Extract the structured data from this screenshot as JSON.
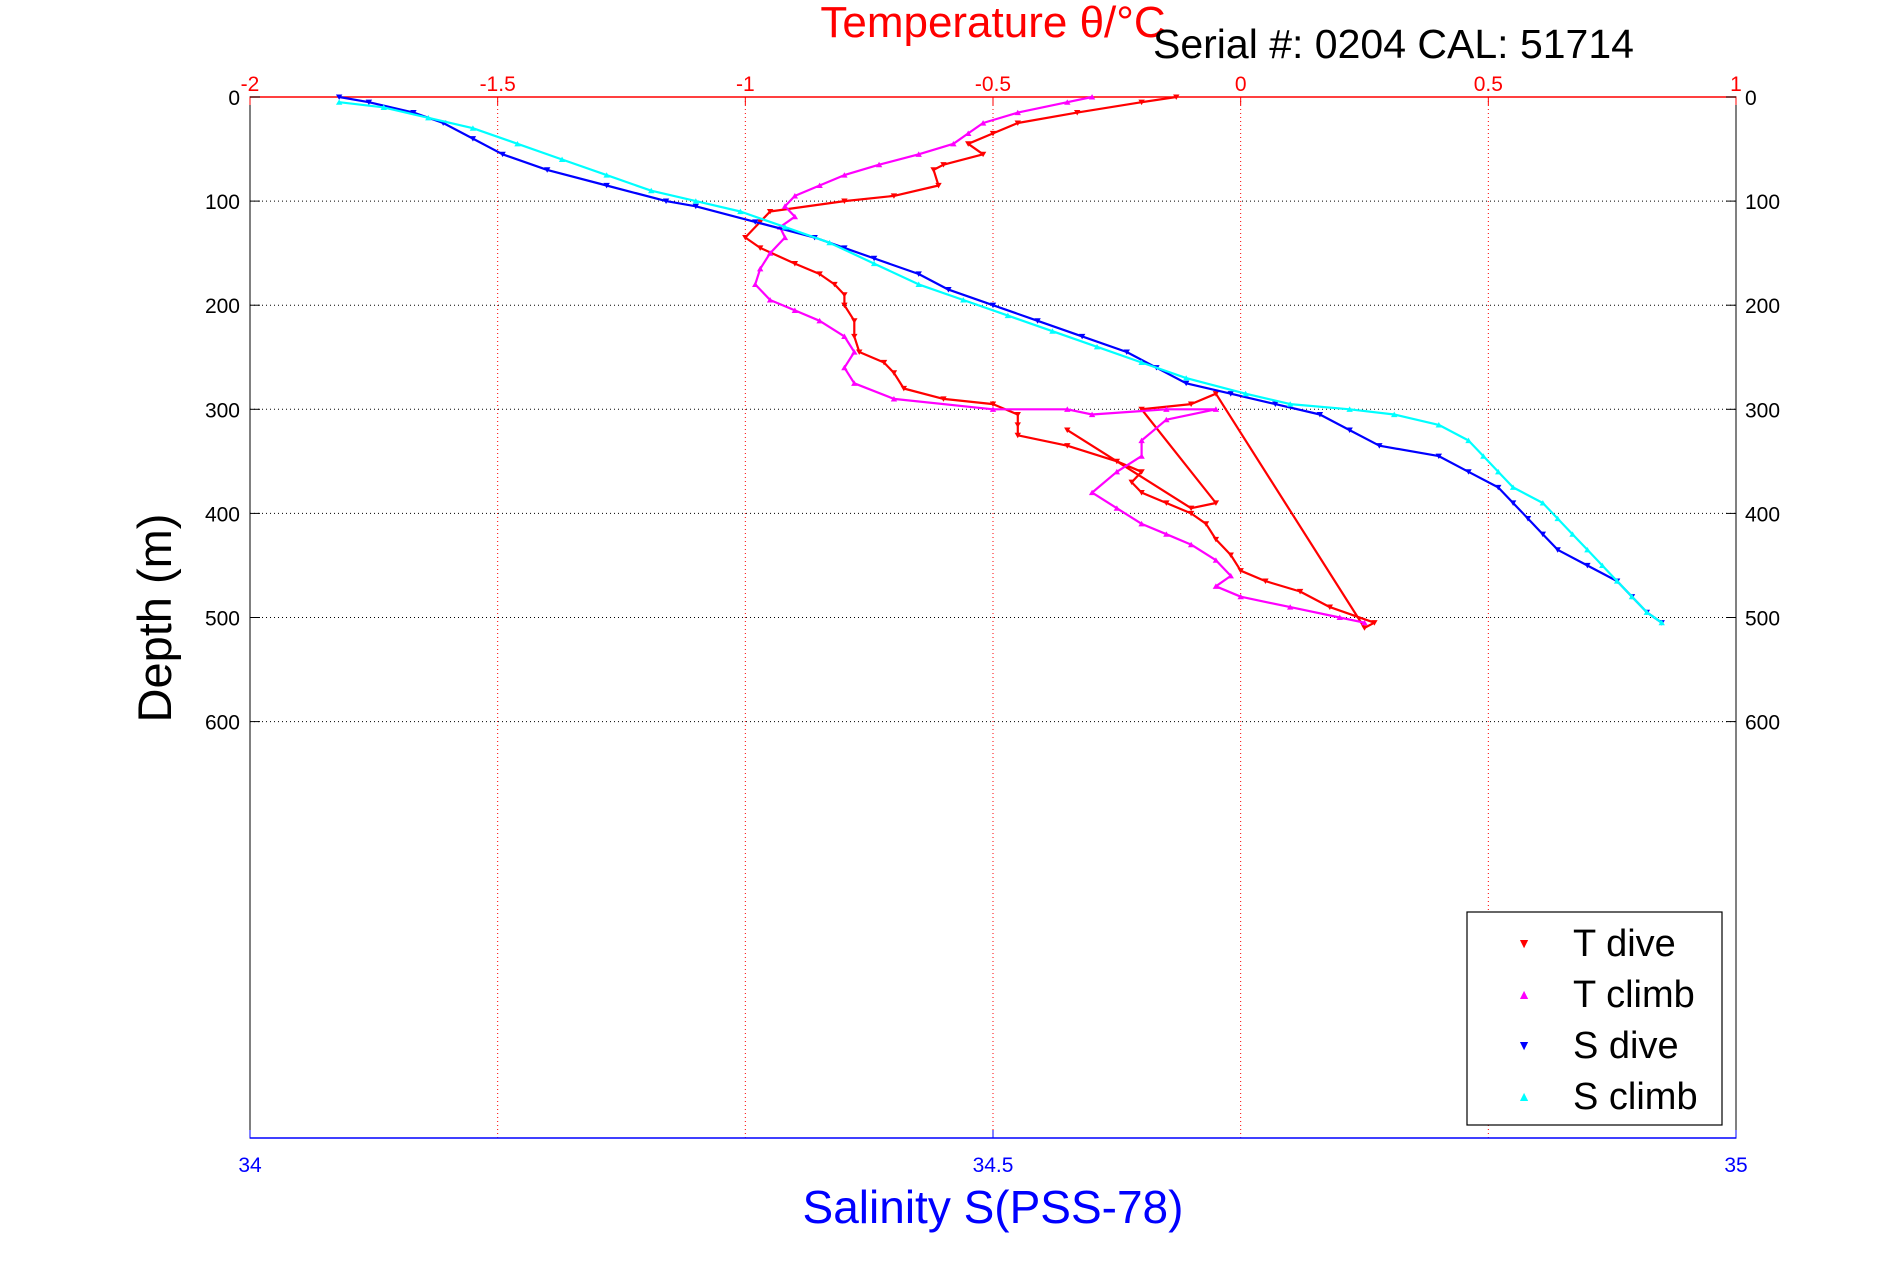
{
  "header": {
    "serial_label": "Serial #: 0204  CAL: 51714"
  },
  "chart_data": {
    "type": "scatter",
    "title": "Temperature θ/°C",
    "ylabel": "Depth (m)",
    "top_axis": {
      "label": "Temperature θ/°C",
      "range": [
        -2,
        1
      ],
      "ticks": [
        -2,
        -1.5,
        -1,
        -0.5,
        0,
        0.5,
        1
      ],
      "tick_labels": [
        "-2",
        "-1.5",
        "-1",
        "-0.5",
        "0",
        "0.5",
        "1"
      ],
      "color": "#ff0000",
      "grid": true
    },
    "bottom_axis": {
      "label": "Salinity S(PSS-78)",
      "range": [
        34,
        35
      ],
      "ticks": [
        34,
        34.5,
        35
      ],
      "tick_labels": [
        "34",
        "34.5",
        "35"
      ],
      "color": "#0000ff"
    },
    "y_axis": {
      "label": "Depth (m)",
      "range": [
        0,
        1000
      ],
      "reversed": true,
      "ticks": [
        0,
        100,
        200,
        300,
        400,
        500,
        600
      ],
      "tick_labels": [
        "0",
        "100",
        "200",
        "300",
        "400",
        "500",
        "600"
      ],
      "grid": true
    },
    "legend": {
      "position": "bottom-right"
    },
    "series": [
      {
        "name": "T dive",
        "axis": "top",
        "color": "#ff0000",
        "marker": "triangle-down",
        "points": [
          [
            -0.13,
            0
          ],
          [
            -0.2,
            5
          ],
          [
            -0.33,
            15
          ],
          [
            -0.45,
            25
          ],
          [
            -0.5,
            35
          ],
          [
            -0.55,
            45
          ],
          [
            -0.52,
            55
          ],
          [
            -0.6,
            65
          ],
          [
            -0.62,
            70
          ],
          [
            -0.61,
            85
          ],
          [
            -0.7,
            95
          ],
          [
            -0.8,
            100
          ],
          [
            -0.95,
            110
          ],
          [
            -0.97,
            120
          ],
          [
            -1.0,
            135
          ],
          [
            -0.97,
            145
          ],
          [
            -0.9,
            160
          ],
          [
            -0.85,
            170
          ],
          [
            -0.82,
            180
          ],
          [
            -0.8,
            190
          ],
          [
            -0.8,
            200
          ],
          [
            -0.78,
            215
          ],
          [
            -0.78,
            230
          ],
          [
            -0.77,
            245
          ],
          [
            -0.72,
            255
          ],
          [
            -0.7,
            265
          ],
          [
            -0.68,
            280
          ],
          [
            -0.6,
            290
          ],
          [
            -0.5,
            295
          ],
          [
            -0.45,
            305
          ],
          [
            -0.45,
            315
          ],
          [
            -0.45,
            325
          ],
          [
            -0.35,
            335
          ],
          [
            -0.25,
            350
          ],
          [
            -0.2,
            360
          ],
          [
            -0.22,
            370
          ],
          [
            -0.2,
            380
          ],
          [
            -0.15,
            390
          ],
          [
            -0.1,
            400
          ],
          [
            -0.07,
            410
          ],
          [
            -0.05,
            425
          ],
          [
            -0.02,
            440
          ],
          [
            0.0,
            455
          ],
          [
            0.05,
            465
          ],
          [
            0.12,
            475
          ],
          [
            0.18,
            490
          ],
          [
            0.27,
            505
          ],
          [
            0.25,
            510
          ],
          [
            -0.05,
            285
          ],
          [
            -0.1,
            295
          ],
          [
            -0.2,
            300
          ],
          [
            -0.05,
            390
          ],
          [
            -0.1,
            395
          ],
          [
            -0.35,
            320
          ]
        ]
      },
      {
        "name": "T climb",
        "axis": "top",
        "color": "#ff00ff",
        "marker": "triangle-up",
        "points": [
          [
            -0.3,
            0
          ],
          [
            -0.35,
            5
          ],
          [
            -0.45,
            15
          ],
          [
            -0.52,
            25
          ],
          [
            -0.55,
            35
          ],
          [
            -0.58,
            45
          ],
          [
            -0.65,
            55
          ],
          [
            -0.73,
            65
          ],
          [
            -0.8,
            75
          ],
          [
            -0.85,
            85
          ],
          [
            -0.9,
            95
          ],
          [
            -0.92,
            105
          ],
          [
            -0.9,
            115
          ],
          [
            -0.93,
            125
          ],
          [
            -0.92,
            135
          ],
          [
            -0.95,
            150
          ],
          [
            -0.97,
            165
          ],
          [
            -0.98,
            180
          ],
          [
            -0.95,
            195
          ],
          [
            -0.9,
            205
          ],
          [
            -0.85,
            215
          ],
          [
            -0.8,
            230
          ],
          [
            -0.78,
            245
          ],
          [
            -0.8,
            260
          ],
          [
            -0.78,
            275
          ],
          [
            -0.7,
            290
          ],
          [
            -0.5,
            300
          ],
          [
            -0.35,
            300
          ],
          [
            -0.3,
            305
          ],
          [
            -0.15,
            300
          ],
          [
            -0.05,
            300
          ],
          [
            -0.15,
            310
          ],
          [
            -0.2,
            330
          ],
          [
            -0.2,
            345
          ],
          [
            -0.25,
            360
          ],
          [
            -0.3,
            380
          ],
          [
            -0.25,
            395
          ],
          [
            -0.2,
            410
          ],
          [
            -0.15,
            420
          ],
          [
            -0.1,
            430
          ],
          [
            -0.05,
            445
          ],
          [
            -0.02,
            460
          ],
          [
            -0.05,
            470
          ],
          [
            0.0,
            480
          ],
          [
            0.1,
            490
          ],
          [
            0.2,
            500
          ],
          [
            0.25,
            505
          ]
        ]
      },
      {
        "name": "S dive",
        "axis": "bottom",
        "color": "#0000ff",
        "marker": "triangle-down",
        "points": [
          [
            34.06,
            0
          ],
          [
            34.08,
            5
          ],
          [
            34.11,
            15
          ],
          [
            34.13,
            25
          ],
          [
            34.15,
            40
          ],
          [
            34.17,
            55
          ],
          [
            34.2,
            70
          ],
          [
            34.24,
            85
          ],
          [
            34.28,
            100
          ],
          [
            34.3,
            105
          ],
          [
            34.34,
            120
          ],
          [
            34.38,
            135
          ],
          [
            34.4,
            145
          ],
          [
            34.42,
            155
          ],
          [
            34.45,
            170
          ],
          [
            34.47,
            185
          ],
          [
            34.5,
            200
          ],
          [
            34.53,
            215
          ],
          [
            34.56,
            230
          ],
          [
            34.59,
            245
          ],
          [
            34.61,
            260
          ],
          [
            34.63,
            275
          ],
          [
            34.66,
            285
          ],
          [
            34.69,
            295
          ],
          [
            34.72,
            305
          ],
          [
            34.74,
            320
          ],
          [
            34.76,
            335
          ],
          [
            34.8,
            345
          ],
          [
            34.82,
            360
          ],
          [
            34.84,
            375
          ],
          [
            34.85,
            390
          ],
          [
            34.86,
            405
          ],
          [
            34.87,
            420
          ],
          [
            34.88,
            435
          ],
          [
            34.9,
            450
          ],
          [
            34.92,
            465
          ],
          [
            34.93,
            480
          ],
          [
            34.94,
            495
          ],
          [
            34.95,
            505
          ]
        ]
      },
      {
        "name": "S climb",
        "axis": "bottom",
        "color": "#00ffff",
        "marker": "triangle-up",
        "points": [
          [
            34.06,
            5
          ],
          [
            34.09,
            10
          ],
          [
            34.12,
            20
          ],
          [
            34.15,
            30
          ],
          [
            34.18,
            45
          ],
          [
            34.21,
            60
          ],
          [
            34.24,
            75
          ],
          [
            34.27,
            90
          ],
          [
            34.3,
            100
          ],
          [
            34.33,
            110
          ],
          [
            34.36,
            125
          ],
          [
            34.39,
            140
          ],
          [
            34.42,
            160
          ],
          [
            34.45,
            180
          ],
          [
            34.48,
            195
          ],
          [
            34.51,
            210
          ],
          [
            34.54,
            225
          ],
          [
            34.57,
            240
          ],
          [
            34.6,
            255
          ],
          [
            34.63,
            270
          ],
          [
            34.67,
            285
          ],
          [
            34.7,
            295
          ],
          [
            34.74,
            300
          ],
          [
            34.77,
            305
          ],
          [
            34.8,
            315
          ],
          [
            34.82,
            330
          ],
          [
            34.83,
            345
          ],
          [
            34.84,
            360
          ],
          [
            34.85,
            375
          ],
          [
            34.87,
            390
          ],
          [
            34.88,
            405
          ],
          [
            34.89,
            420
          ],
          [
            34.9,
            435
          ],
          [
            34.91,
            450
          ],
          [
            34.92,
            465
          ],
          [
            34.93,
            480
          ],
          [
            34.94,
            495
          ],
          [
            34.95,
            505
          ]
        ]
      }
    ]
  }
}
